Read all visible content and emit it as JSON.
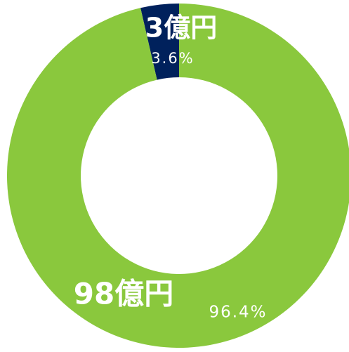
{
  "chart_data": {
    "type": "donut",
    "categories": [
      "3億円",
      "98億円"
    ],
    "values": [
      3.6,
      96.4
    ],
    "value_labels": [
      "3.6%",
      "96.4%"
    ],
    "colors": [
      "#00215c",
      "#8ac83d"
    ]
  }
}
